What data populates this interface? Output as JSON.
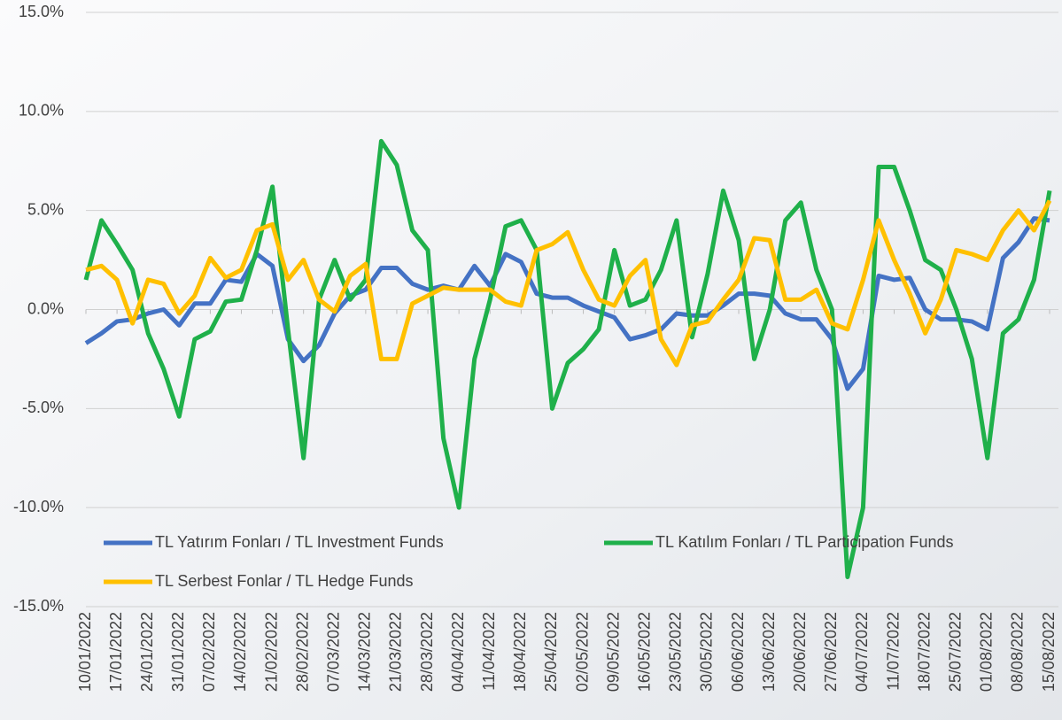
{
  "chart_data": {
    "type": "line",
    "categories": [
      "10/01/2022",
      null,
      "17/01/2022",
      null,
      "24/01/2022",
      null,
      "31/01/2022",
      null,
      "07/02/2022",
      null,
      "14/02/2022",
      null,
      "21/02/2022",
      null,
      "28/02/2022",
      null,
      "07/03/2022",
      null,
      "14/03/2022",
      null,
      "21/03/2022",
      null,
      "28/03/2022",
      null,
      "04/04/2022",
      null,
      "11/04/2022",
      null,
      "18/04/2022",
      null,
      "25/04/2022",
      null,
      "02/05/2022",
      null,
      "09/05/2022",
      null,
      "16/05/2022",
      null,
      "23/05/2022",
      null,
      "30/05/2022",
      null,
      "06/06/2022",
      null,
      "13/06/2022",
      null,
      "20/06/2022",
      null,
      "27/06/2022",
      null,
      "04/07/2022",
      null,
      "11/07/2022",
      null,
      "18/07/2022",
      null,
      "25/07/2022",
      null,
      "01/08/2022",
      null,
      "08/08/2022",
      null,
      "15/08/2022"
    ],
    "series": [
      {
        "name": "TL Yatırım Fonları / TL Investment Funds",
        "color": "#4472c4",
        "values": [
          -1.7,
          -1.2,
          -0.6,
          -0.5,
          -0.2,
          0.0,
          -0.8,
          0.3,
          0.3,
          1.5,
          1.4,
          2.8,
          2.2,
          -1.5,
          -2.6,
          -1.8,
          -0.2,
          0.7,
          1.0,
          2.1,
          2.1,
          1.3,
          1.0,
          1.2,
          1.0,
          2.2,
          1.2,
          2.8,
          2.4,
          0.8,
          0.6,
          0.6,
          0.2,
          -0.1,
          -0.4,
          -1.5,
          -1.3,
          -1.0,
          -0.2,
          -0.3,
          -0.3,
          0.2,
          0.8,
          0.8,
          0.7,
          -0.2,
          -0.5,
          -0.5,
          -1.5,
          -4.0,
          -3.0,
          1.7,
          1.5,
          1.6,
          0.0,
          -0.5,
          -0.5,
          -0.6,
          -1.0,
          2.6,
          3.4,
          4.6,
          4.5
        ]
      },
      {
        "name": "TL Katılım Fonları / TL Participation Funds",
        "color": "#1fb04a",
        "values": [
          1.5,
          4.5,
          3.3,
          2.0,
          -1.2,
          -3.0,
          -5.4,
          -1.5,
          -1.1,
          0.4,
          0.5,
          3.0,
          6.2,
          -1.0,
          -7.5,
          0.5,
          2.5,
          0.5,
          1.5,
          8.5,
          7.3,
          4.0,
          3.0,
          -6.5,
          -10.0,
          -2.5,
          0.5,
          4.2,
          4.5,
          3.0,
          -5.0,
          -2.7,
          -2.0,
          -1.0,
          3.0,
          0.2,
          0.5,
          2.0,
          4.5,
          -1.4,
          1.8,
          6.0,
          3.5,
          -2.5,
          0.0,
          4.5,
          5.4,
          2.0,
          0.0,
          -13.5,
          -10.0,
          7.2,
          7.2,
          5.0,
          2.5,
          2.0,
          0.0,
          -2.5,
          -7.5,
          -1.2,
          -0.5,
          1.5,
          6.0
        ]
      },
      {
        "name": "TL Serbest Fonlar / TL Hedge Funds",
        "color": "#ffc000",
        "values": [
          2.0,
          2.2,
          1.5,
          -0.7,
          1.5,
          1.3,
          -0.2,
          0.7,
          2.6,
          1.6,
          2.0,
          4.0,
          4.3,
          1.5,
          2.5,
          0.5,
          -0.1,
          1.7,
          2.3,
          -2.5,
          -2.5,
          0.3,
          0.7,
          1.1,
          1.0,
          1.0,
          1.0,
          0.4,
          0.2,
          3.0,
          3.3,
          3.9,
          2.0,
          0.5,
          0.2,
          1.7,
          2.5,
          -1.5,
          -2.8,
          -0.8,
          -0.6,
          0.5,
          1.5,
          3.6,
          3.5,
          0.5,
          0.5,
          1.0,
          -0.7,
          -1.0,
          1.5,
          4.5,
          2.5,
          0.8,
          -1.2,
          0.5,
          3.0,
          2.8,
          2.5,
          4.0,
          5.0,
          4.0,
          5.5
        ]
      }
    ],
    "ylim": [
      -15,
      15
    ],
    "yticks": [
      {
        "value": -15,
        "label": "-15.0%"
      },
      {
        "value": -10,
        "label": "-10.0%"
      },
      {
        "value": -5,
        "label": "-5.0%"
      },
      {
        "value": 0,
        "label": "0.0%"
      },
      {
        "value": 5,
        "label": "5.0%"
      },
      {
        "value": 10,
        "label": "10.0%"
      },
      {
        "value": 15,
        "label": "15.0%"
      }
    ],
    "grid": true
  }
}
